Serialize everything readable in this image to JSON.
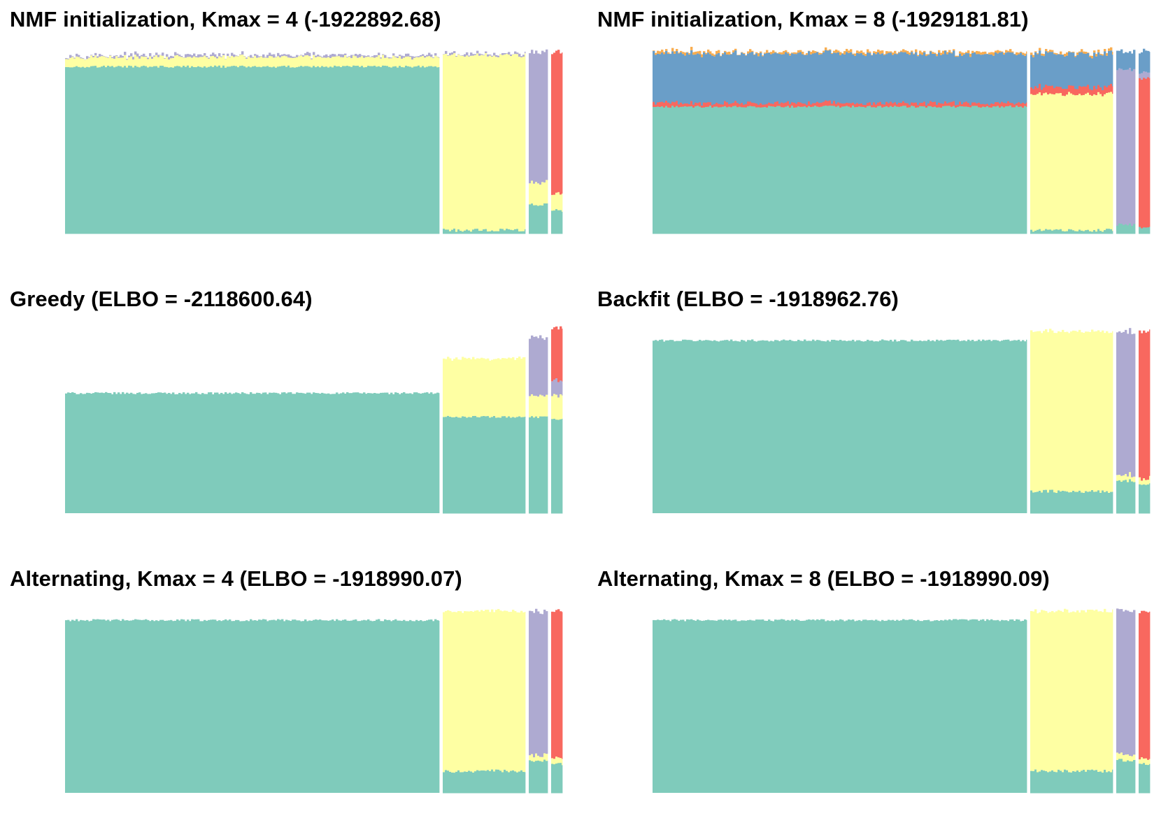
{
  "colors": {
    "teal": "#7fcbbb",
    "yellow": "#feffa3",
    "purple": "#aeaad1",
    "red": "#f8685f",
    "blue": "#6a9ec8",
    "orange": "#f8ad50",
    "background": "#ffffff"
  },
  "chart_data": [
    {
      "type": "bar",
      "stacked": true,
      "title": "NMF initialization, Kmax = 4 (-1922892.68)",
      "groups": [
        {
          "proportions": [
            {
              "color": "teal",
              "value": 0.92
            },
            {
              "color": "yellow",
              "value": 0.05
            },
            {
              "color": "purple",
              "value": 0.01
            }
          ]
        },
        {
          "proportions": [
            {
              "color": "teal",
              "value": 0.02
            },
            {
              "color": "yellow",
              "value": 0.96
            },
            {
              "color": "purple",
              "value": 0.01
            }
          ]
        },
        {
          "proportions": [
            {
              "color": "teal",
              "value": 0.16
            },
            {
              "color": "yellow",
              "value": 0.12
            },
            {
              "color": "purple",
              "value": 0.72
            }
          ]
        },
        {
          "proportions": [
            {
              "color": "teal",
              "value": 0.13
            },
            {
              "color": "yellow",
              "value": 0.09
            },
            {
              "color": "red",
              "value": 0.78
            }
          ]
        }
      ]
    },
    {
      "type": "bar",
      "stacked": true,
      "title": "NMF initialization, Kmax = 8 (-1929181.81)",
      "groups": [
        {
          "proportions": [
            {
              "color": "teal",
              "value": 0.7
            },
            {
              "color": "red",
              "value": 0.02
            },
            {
              "color": "blue",
              "value": 0.27
            },
            {
              "color": "orange",
              "value": 0.01
            }
          ]
        },
        {
          "proportions": [
            {
              "color": "teal",
              "value": 0.02
            },
            {
              "color": "yellow",
              "value": 0.75
            },
            {
              "color": "red",
              "value": 0.04
            },
            {
              "color": "blue",
              "value": 0.18
            },
            {
              "color": "orange",
              "value": 0.01
            }
          ]
        },
        {
          "proportions": [
            {
              "color": "teal",
              "value": 0.05
            },
            {
              "color": "purple",
              "value": 0.85
            },
            {
              "color": "blue",
              "value": 0.1
            }
          ]
        },
        {
          "proportions": [
            {
              "color": "teal",
              "value": 0.03
            },
            {
              "color": "red",
              "value": 0.82
            },
            {
              "color": "purple",
              "value": 0.03
            },
            {
              "color": "blue",
              "value": 0.12
            }
          ]
        }
      ]
    },
    {
      "type": "bar",
      "stacked": true,
      "title": "Greedy (ELBO = -2118600.64)",
      "groups": [
        {
          "proportions": [
            {
              "color": "teal",
              "value": 0.66
            }
          ]
        },
        {
          "proportions": [
            {
              "color": "teal",
              "value": 0.53
            },
            {
              "color": "yellow",
              "value": 0.32
            }
          ]
        },
        {
          "proportions": [
            {
              "color": "teal",
              "value": 0.53
            },
            {
              "color": "yellow",
              "value": 0.11
            },
            {
              "color": "purple",
              "value": 0.32
            }
          ]
        },
        {
          "proportions": [
            {
              "color": "teal",
              "value": 0.52
            },
            {
              "color": "yellow",
              "value": 0.13
            },
            {
              "color": "purple",
              "value": 0.08
            },
            {
              "color": "red",
              "value": 0.29
            }
          ]
        }
      ]
    },
    {
      "type": "bar",
      "stacked": true,
      "title": "Backfit (ELBO = -1918962.76)",
      "groups": [
        {
          "proportions": [
            {
              "color": "teal",
              "value": 0.95
            }
          ]
        },
        {
          "proportions": [
            {
              "color": "teal",
              "value": 0.12
            },
            {
              "color": "yellow",
              "value": 0.88
            }
          ]
        },
        {
          "proportions": [
            {
              "color": "teal",
              "value": 0.18
            },
            {
              "color": "yellow",
              "value": 0.03
            },
            {
              "color": "purple",
              "value": 0.79
            }
          ]
        },
        {
          "proportions": [
            {
              "color": "teal",
              "value": 0.16
            },
            {
              "color": "yellow",
              "value": 0.03
            },
            {
              "color": "red",
              "value": 0.81
            }
          ]
        }
      ]
    },
    {
      "type": "bar",
      "stacked": true,
      "title": "Alternating, Kmax = 4 (ELBO = -1918990.07)",
      "groups": [
        {
          "proportions": [
            {
              "color": "teal",
              "value": 0.95
            }
          ]
        },
        {
          "proportions": [
            {
              "color": "teal",
              "value": 0.12
            },
            {
              "color": "yellow",
              "value": 0.88
            }
          ]
        },
        {
          "proportions": [
            {
              "color": "teal",
              "value": 0.18
            },
            {
              "color": "yellow",
              "value": 0.03
            },
            {
              "color": "purple",
              "value": 0.79
            }
          ]
        },
        {
          "proportions": [
            {
              "color": "teal",
              "value": 0.16
            },
            {
              "color": "yellow",
              "value": 0.03
            },
            {
              "color": "red",
              "value": 0.81
            }
          ]
        }
      ]
    },
    {
      "type": "bar",
      "stacked": true,
      "title": "Alternating, Kmax = 8 (ELBO = -1918990.09)",
      "groups": [
        {
          "proportions": [
            {
              "color": "teal",
              "value": 0.95
            }
          ]
        },
        {
          "proportions": [
            {
              "color": "teal",
              "value": 0.12
            },
            {
              "color": "yellow",
              "value": 0.88
            }
          ]
        },
        {
          "proportions": [
            {
              "color": "teal",
              "value": 0.18
            },
            {
              "color": "yellow",
              "value": 0.03
            },
            {
              "color": "purple",
              "value": 0.79
            }
          ]
        },
        {
          "proportions": [
            {
              "color": "teal",
              "value": 0.16
            },
            {
              "color": "yellow",
              "value": 0.03
            },
            {
              "color": "red",
              "value": 0.81
            }
          ]
        }
      ]
    }
  ]
}
